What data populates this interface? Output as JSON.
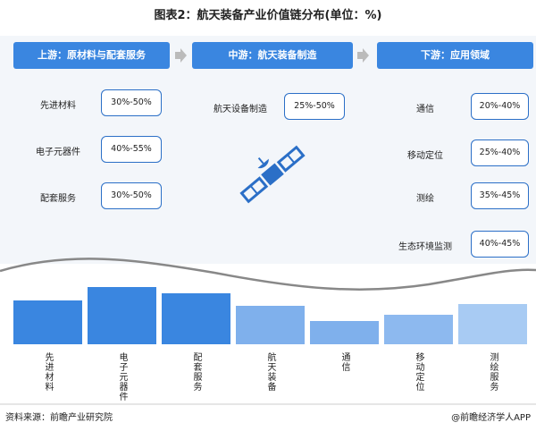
{
  "title": "图表2：航天装备产业价值链分布(单位：%)",
  "stages": [
    {
      "header": "上游：原材料与配套服务",
      "items": [
        {
          "label": "先进材料",
          "value": "30%-50%"
        },
        {
          "label": "电子元器件",
          "value": "40%-55%"
        },
        {
          "label": "配套服务",
          "value": "30%-50%"
        }
      ]
    },
    {
      "header": "中游：航天装备制造",
      "items": [
        {
          "label": "航天设备制造",
          "value": "25%-50%"
        }
      ]
    },
    {
      "header": "下游：应用领域",
      "items": [
        {
          "label": "通信",
          "value": "20%-40%"
        },
        {
          "label": "移动定位",
          "value": "25%-40%"
        },
        {
          "label": "测绘",
          "value": "35%-45%"
        },
        {
          "label": "生态环境监测",
          "value": "40%-45%"
        }
      ]
    }
  ],
  "bar_labels": [
    "先进材料",
    "电子元器件",
    "配套服务",
    "航天装备",
    "通信",
    "移动定位",
    "测绘服务"
  ],
  "footer": {
    "source": "资料来源：前瞻产业研究院",
    "brand": "@前瞻经济学人APP"
  }
}
